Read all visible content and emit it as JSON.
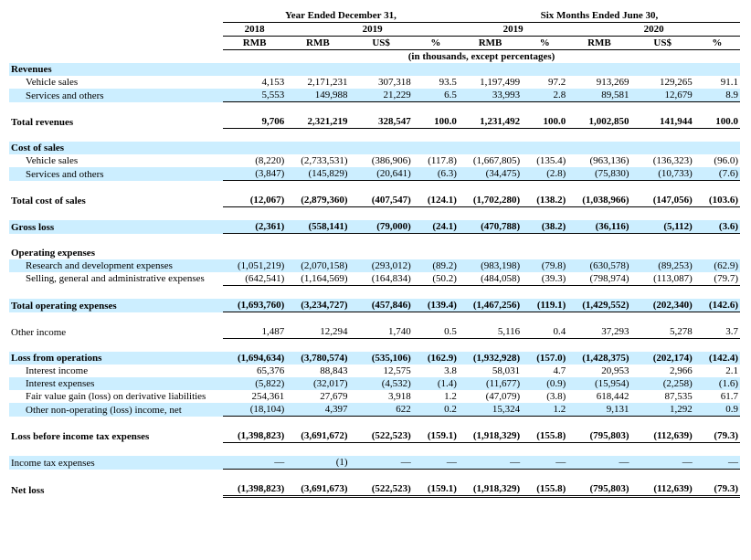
{
  "headers": {
    "year_ended": "Year Ended December 31,",
    "six_months": "Six Months Ended June 30,",
    "y2018": "2018",
    "y2019": "2019",
    "y2020": "2020",
    "rmb": "RMB",
    "usd": "US$",
    "pct": "%",
    "units": "(in thousands, except percentages)"
  },
  "rows": [
    {
      "label": "Revenues",
      "bold": true,
      "indent": false,
      "shade": true
    },
    {
      "label": "Vehicle sales",
      "indent": true,
      "v": [
        "4,153",
        "2,171,231",
        "307,318",
        "93.5",
        "1,197,499",
        "97.2",
        "913,269",
        "129,265",
        "91.1"
      ]
    },
    {
      "label": "Services and others",
      "indent": true,
      "shade": true,
      "bb": true,
      "v": [
        "5,553",
        "149,988",
        "21,229",
        "6.5",
        "33,993",
        "2.8",
        "89,581",
        "12,679",
        "8.9"
      ]
    },
    {
      "spacer": true
    },
    {
      "label": "Total revenues",
      "bold": true,
      "bb": true,
      "v": [
        "9,706",
        "2,321,219",
        "328,547",
        "100.0",
        "1,231,492",
        "100.0",
        "1,002,850",
        "141,944",
        "100.0"
      ]
    },
    {
      "spacer": true
    },
    {
      "label": "Cost of sales",
      "bold": true,
      "shade": true
    },
    {
      "label": "Vehicle sales",
      "indent": true,
      "v": [
        "(8,220)",
        "(2,733,531)",
        "(386,906)",
        "(117.8)",
        "(1,667,805)",
        "(135.4)",
        "(963,136)",
        "(136,323)",
        "(96.0)"
      ]
    },
    {
      "label": "Services and others",
      "indent": true,
      "shade": true,
      "bb": true,
      "v": [
        "(3,847)",
        "(145,829)",
        "(20,641)",
        "(6.3)",
        "(34,475)",
        "(2.8)",
        "(75,830)",
        "(10,733)",
        "(7.6)"
      ]
    },
    {
      "spacer": true
    },
    {
      "label": "Total cost of sales",
      "bold": true,
      "bb": true,
      "v": [
        "(12,067)",
        "(2,879,360)",
        "(407,547)",
        "(124.1)",
        "(1,702,280)",
        "(138.2)",
        "(1,038,966)",
        "(147,056)",
        "(103.6)"
      ]
    },
    {
      "spacer": true
    },
    {
      "label": "Gross loss",
      "bold": true,
      "shade": true,
      "bb": true,
      "v": [
        "(2,361)",
        "(558,141)",
        "(79,000)",
        "(24.1)",
        "(470,788)",
        "(38.2)",
        "(36,116)",
        "(5,112)",
        "(3.6)"
      ]
    },
    {
      "spacer": true
    },
    {
      "label": "Operating expenses",
      "bold": true
    },
    {
      "label": "Research and development expenses",
      "indent": true,
      "shade": true,
      "v": [
        "(1,051,219)",
        "(2,070,158)",
        "(293,012)",
        "(89.2)",
        "(983,198)",
        "(79.8)",
        "(630,578)",
        "(89,253)",
        "(62.9)"
      ]
    },
    {
      "label": "Selling, general and administrative expenses",
      "indent": true,
      "wrap": true,
      "bb": true,
      "v": [
        "(642,541)",
        "(1,164,569)",
        "(164,834)",
        "(50.2)",
        "(484,058)",
        "(39.3)",
        "(798,974)",
        "(113,087)",
        "(79.7)"
      ]
    },
    {
      "spacer": true
    },
    {
      "label": "Total operating expenses",
      "bold": true,
      "shade": true,
      "bb": true,
      "v": [
        "(1,693,760)",
        "(3,234,727)",
        "(457,846)",
        "(139.4)",
        "(1,467,256)",
        "(119.1)",
        "(1,429,552)",
        "(202,340)",
        "(142.6)"
      ]
    },
    {
      "spacer": true
    },
    {
      "label": "Other income",
      "bb": true,
      "v": [
        "1,487",
        "12,294",
        "1,740",
        "0.5",
        "5,116",
        "0.4",
        "37,293",
        "5,278",
        "3.7"
      ]
    },
    {
      "spacer": true
    },
    {
      "label": "Loss from operations",
      "bold": true,
      "shade": true,
      "v": [
        "(1,694,634)",
        "(3,780,574)",
        "(535,106)",
        "(162.9)",
        "(1,932,928)",
        "(157.0)",
        "(1,428,375)",
        "(202,174)",
        "(142.4)"
      ]
    },
    {
      "label": "Interest income",
      "indent": true,
      "v": [
        "65,376",
        "88,843",
        "12,575",
        "3.8",
        "58,031",
        "4.7",
        "20,953",
        "2,966",
        "2.1"
      ]
    },
    {
      "label": "Interest expenses",
      "indent": true,
      "shade": true,
      "v": [
        "(5,822)",
        "(32,017)",
        "(4,532)",
        "(1.4)",
        "(11,677)",
        "(0.9)",
        "(15,954)",
        "(2,258)",
        "(1.6)"
      ]
    },
    {
      "label": "Fair value gain (loss) on derivative liabilities",
      "indent": true,
      "wrap": true,
      "v": [
        "254,361",
        "27,679",
        "3,918",
        "1.2",
        "(47,079)",
        "(3.8)",
        "618,442",
        "87,535",
        "61.7"
      ]
    },
    {
      "label": "Other non-operating (loss) income, net",
      "indent": true,
      "shade": true,
      "bb": true,
      "v": [
        "(18,104)",
        "4,397",
        "622",
        "0.2",
        "15,324",
        "1.2",
        "9,131",
        "1,292",
        "0.9"
      ]
    },
    {
      "spacer": true
    },
    {
      "label": "Loss before income tax expenses",
      "bold": true,
      "bb": true,
      "v": [
        "(1,398,823)",
        "(3,691,672)",
        "(522,523)",
        "(159.1)",
        "(1,918,329)",
        "(155.8)",
        "(795,803)",
        "(112,639)",
        "(79.3)"
      ]
    },
    {
      "spacer": true
    },
    {
      "label": "Income tax expenses",
      "shade": true,
      "bb": true,
      "v": [
        "—",
        "(1)",
        "—",
        "—",
        "—",
        "—",
        "—",
        "—",
        "—"
      ]
    },
    {
      "spacer": true
    },
    {
      "label": "Net loss",
      "bold": true,
      "dbb": true,
      "v": [
        "(1,398,823)",
        "(3,691,673)",
        "(522,523)",
        "(159.1)",
        "(1,918,329)",
        "(155.8)",
        "(795,803)",
        "(112,639)",
        "(79.3)"
      ]
    }
  ]
}
